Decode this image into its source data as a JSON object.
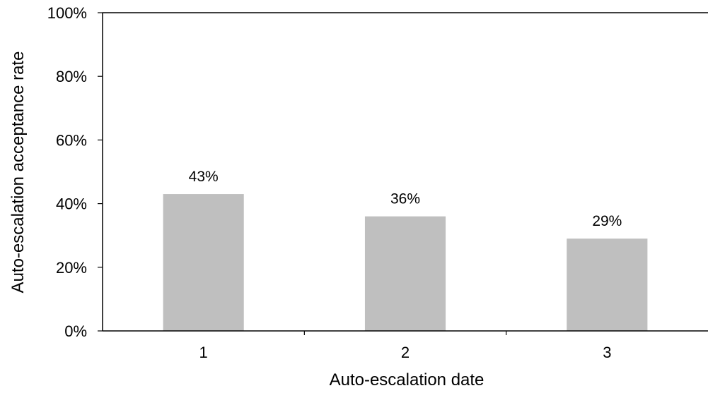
{
  "chart_data": {
    "type": "bar",
    "categories": [
      "1",
      "2",
      "3"
    ],
    "values": [
      43,
      36,
      29
    ],
    "data_labels": [
      "43%",
      "36%",
      "29%"
    ],
    "xlabel": "Auto-escalation date",
    "ylabel": "Auto-escalation acceptance rate",
    "ylim": [
      0,
      100
    ],
    "yticks": [
      0,
      20,
      40,
      60,
      80,
      100
    ],
    "ytick_labels": [
      "0%",
      "20%",
      "40%",
      "60%",
      "80%",
      "100%"
    ],
    "grid": false,
    "legend": "none",
    "colors": {
      "bar": "#bfbfbf",
      "axis": "#000000",
      "text": "#000000"
    }
  }
}
